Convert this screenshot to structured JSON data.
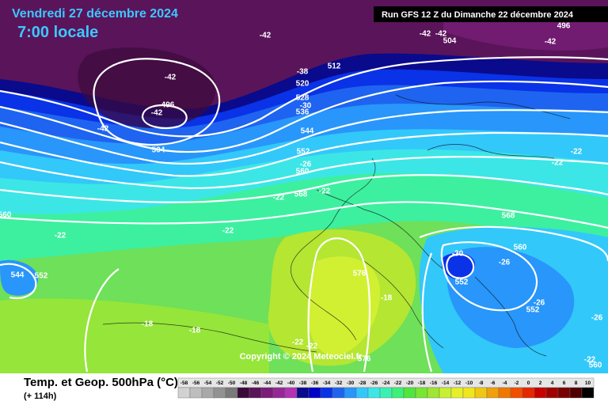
{
  "header": {
    "date": "Vendredi 27 décembre 2024",
    "time": "7:00 locale",
    "run": "Run GFS 12 Z du Dimanche 22 décembre 2024"
  },
  "footer": {
    "title": "Temp. et Geop. 500hPa (°C)",
    "lead": "(+ 114h)",
    "copyright": "Copyright © 2024 Meteociel.fr"
  },
  "legend": {
    "values": [
      -58,
      -56,
      -54,
      -52,
      -50,
      -48,
      -46,
      -44,
      -42,
      -40,
      -38,
      -36,
      -34,
      -32,
      -30,
      -28,
      -26,
      -24,
      -22,
      -20,
      -18,
      -16,
      -14,
      -12,
      -10,
      -8,
      -6,
      -4,
      -2,
      0,
      2,
      4,
      6,
      8,
      10
    ],
    "colors": [
      "#d2d2d2",
      "#bebebe",
      "#a8a8a8",
      "#929292",
      "#7a7a7a",
      "#3a0a3a",
      "#5a145a",
      "#7a1e7a",
      "#962896",
      "#b432b4",
      "#0a0a8c",
      "#0000c8",
      "#0a32e6",
      "#1e64f0",
      "#2896fa",
      "#32c8fa",
      "#3ce6e6",
      "#3cf0b4",
      "#3cf078",
      "#50e63c",
      "#78e632",
      "#a0e632",
      "#c8f032",
      "#e6f028",
      "#f0e61e",
      "#f0c814",
      "#f0a00a",
      "#f07800",
      "#f05000",
      "#e62800",
      "#c80000",
      "#a00000",
      "#780000",
      "#500000",
      "#000000"
    ]
  },
  "contour_labels": [
    "-42",
    "-42",
    "-42",
    "504",
    "496",
    "-42",
    "-42",
    "512",
    "-38",
    "520",
    "528",
    "-30",
    "536",
    "496",
    "-42",
    "-42",
    "544",
    "504",
    "552",
    "-26",
    "560",
    "568",
    "-22",
    "-22",
    "-22",
    "-22",
    "560",
    "-22",
    "-22",
    "568",
    "560",
    "-30",
    "-26",
    "544",
    "552",
    "576",
    "552",
    "-18",
    "-26",
    "552",
    "-26",
    "-18",
    "-18",
    "-22",
    "-22",
    "576",
    "-22",
    "560"
  ]
}
